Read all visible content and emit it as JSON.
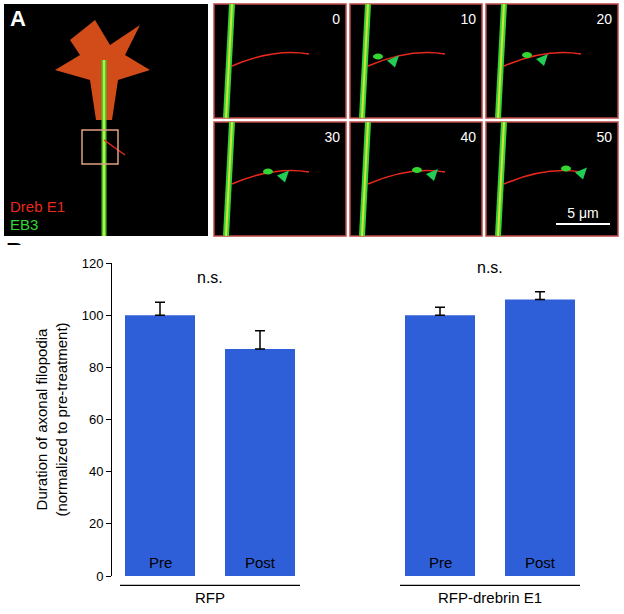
{
  "panel_a": {
    "label": "A",
    "channels": [
      {
        "name": "Dreb E1",
        "color": "#e8291c"
      },
      {
        "name": "EB3",
        "color": "#33d633"
      }
    ],
    "frames": [
      0,
      10,
      20,
      30,
      40,
      50
    ],
    "scale_bar": "5 μm"
  },
  "chart_data": {
    "type": "bar",
    "panel_label": "B",
    "categories": [
      "Pre",
      "Post",
      "Pre",
      "Post"
    ],
    "groups": [
      "RFP",
      "RFP",
      "RFP-drebrin E1",
      "RFP-drebrin E1"
    ],
    "values": [
      100,
      87,
      100,
      106
    ],
    "errors": [
      5,
      7,
      3,
      3
    ],
    "color": "#2f5fd8",
    "ylabel": [
      "Duration of axonal filopodia",
      "(normalized to pre-treatment)"
    ],
    "ylim": [
      0,
      120
    ],
    "yticks": [
      0,
      20,
      40,
      60,
      80,
      100,
      120
    ],
    "grid": false,
    "tick_labels": "y",
    "annotations": [
      {
        "group": "RFP",
        "text": "n.s."
      },
      {
        "group": "RFP-drebrin E1",
        "text": "n.s."
      }
    ]
  }
}
